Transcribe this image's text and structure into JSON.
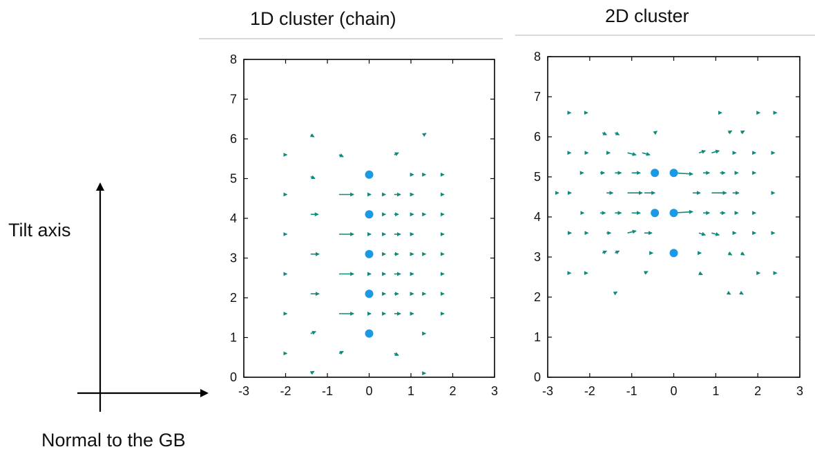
{
  "tilt_axis_label": "Tilt axis",
  "normal_label": "Normal to the GB",
  "colors": {
    "point": "#1a9ae6",
    "arrow": "#0f8a7a",
    "axis": "#000000"
  },
  "chart_data": [
    {
      "type": "scatter",
      "title": "1D cluster (chain)",
      "xlabel": "",
      "ylabel": "",
      "xlim": [
        -3,
        3
      ],
      "ylim": [
        0,
        8
      ],
      "xticks": [
        -3,
        -2,
        -1,
        0,
        1,
        2,
        3
      ],
      "yticks": [
        0,
        1,
        2,
        3,
        4,
        5,
        6,
        7,
        8
      ],
      "grid": false,
      "points": [
        [
          0,
          1.1
        ],
        [
          0,
          2.1
        ],
        [
          0,
          3.1
        ],
        [
          0,
          4.1
        ],
        [
          0,
          5.1
        ]
      ],
      "vectors": [
        [
          -2.05,
          5.6,
          0.08,
          0
        ],
        [
          -2.05,
          4.6,
          0.08,
          0
        ],
        [
          -2.05,
          3.6,
          0.08,
          0
        ],
        [
          -2.05,
          2.6,
          0.08,
          0
        ],
        [
          -2.05,
          1.6,
          0.08,
          0
        ],
        [
          -2.05,
          0.6,
          0.08,
          0
        ],
        [
          -1.4,
          6.1,
          0.08,
          -0.05
        ],
        [
          -1.4,
          5.05,
          0.1,
          -0.05
        ],
        [
          -1.4,
          4.1,
          0.18,
          0
        ],
        [
          -1.4,
          3.1,
          0.2,
          0
        ],
        [
          -1.4,
          2.1,
          0.2,
          0
        ],
        [
          -1.4,
          1.1,
          0.12,
          0.05
        ],
        [
          -1.4,
          0.1,
          0.08,
          0.05
        ],
        [
          -0.72,
          5.6,
          0.1,
          -0.05
        ],
        [
          -0.72,
          4.6,
          0.35,
          0
        ],
        [
          -0.72,
          3.6,
          0.35,
          0
        ],
        [
          -0.72,
          2.6,
          0.35,
          0
        ],
        [
          -0.72,
          1.6,
          0.35,
          0
        ],
        [
          -0.72,
          0.6,
          0.1,
          0.05
        ],
        [
          0,
          4.6,
          0.04,
          0
        ],
        [
          0,
          3.6,
          0.04,
          0
        ],
        [
          0,
          2.6,
          0.04,
          0
        ],
        [
          0,
          1.6,
          0.04,
          0
        ],
        [
          0.35,
          4.6,
          0.04,
          0
        ],
        [
          0.35,
          4.1,
          0.04,
          0
        ],
        [
          0.35,
          3.6,
          0.04,
          0
        ],
        [
          0.35,
          3.1,
          0.04,
          0
        ],
        [
          0.35,
          2.6,
          0.04,
          0
        ],
        [
          0.35,
          2.1,
          0.04,
          0
        ],
        [
          0.35,
          1.6,
          0.04,
          0
        ],
        [
          0.6,
          5.6,
          0.1,
          0.05
        ],
        [
          0.6,
          4.6,
          0.15,
          0
        ],
        [
          0.6,
          4.1,
          0.1,
          0
        ],
        [
          0.6,
          3.6,
          0.15,
          0
        ],
        [
          0.6,
          3.1,
          0.1,
          0
        ],
        [
          0.6,
          2.6,
          0.15,
          0
        ],
        [
          0.6,
          2.1,
          0.1,
          0
        ],
        [
          0.6,
          1.6,
          0.15,
          0
        ],
        [
          0.6,
          0.6,
          0.1,
          -0.05
        ],
        [
          1.0,
          5.1,
          0.06,
          0
        ],
        [
          1.0,
          4.6,
          0.06,
          0
        ],
        [
          1.0,
          4.1,
          0.06,
          0
        ],
        [
          1.0,
          3.6,
          0.06,
          0
        ],
        [
          1.0,
          3.1,
          0.06,
          0
        ],
        [
          1.0,
          2.6,
          0.06,
          0
        ],
        [
          1.0,
          2.1,
          0.06,
          0
        ],
        [
          1.0,
          1.6,
          0.06,
          0
        ],
        [
          1.3,
          6.1,
          0.06,
          0.04
        ],
        [
          1.3,
          5.1,
          0.05,
          0
        ],
        [
          1.3,
          4.1,
          0.05,
          0
        ],
        [
          1.3,
          3.1,
          0.05,
          0
        ],
        [
          1.3,
          2.1,
          0.05,
          0
        ],
        [
          1.3,
          1.1,
          0.05,
          0
        ],
        [
          1.3,
          0.1,
          0.05,
          0
        ],
        [
          1.75,
          5.1,
          0.04,
          0
        ],
        [
          1.75,
          4.6,
          0.04,
          0
        ],
        [
          1.75,
          4.1,
          0.04,
          0
        ],
        [
          1.75,
          3.6,
          0.04,
          0
        ],
        [
          1.75,
          3.1,
          0.04,
          0
        ],
        [
          1.75,
          2.6,
          0.04,
          0
        ],
        [
          1.75,
          2.1,
          0.04,
          0
        ],
        [
          1.75,
          1.6,
          0.04,
          0
        ]
      ]
    },
    {
      "type": "scatter",
      "title": "2D cluster",
      "xlabel": "",
      "ylabel": "",
      "xlim": [
        -3,
        3
      ],
      "ylim": [
        0,
        8
      ],
      "xticks": [
        -3,
        -2,
        -1,
        0,
        1,
        2,
        3
      ],
      "yticks": [
        0,
        1,
        2,
        3,
        4,
        5,
        6,
        7,
        8
      ],
      "grid": false,
      "points": [
        [
          -0.45,
          5.1
        ],
        [
          0,
          5.1
        ],
        [
          -0.45,
          4.1
        ],
        [
          0,
          4.1
        ],
        [
          0,
          3.1
        ]
      ],
      "vectors": [
        [
          -2.5,
          6.6,
          0.05,
          0
        ],
        [
          -2.1,
          6.6,
          0.05,
          0
        ],
        [
          -1.7,
          6.1,
          0.1,
          -0.05
        ],
        [
          -1.4,
          6.1,
          0.1,
          -0.05
        ],
        [
          -0.45,
          6.1,
          0.05,
          0.04
        ],
        [
          1.1,
          6.6,
          0.04,
          0
        ],
        [
          1.3,
          6.1,
          0.08,
          0.05
        ],
        [
          1.6,
          6.1,
          0.08,
          0.05
        ],
        [
          2.0,
          6.6,
          0.05,
          0
        ],
        [
          2.4,
          6.6,
          0.05,
          0
        ],
        [
          -2.5,
          5.6,
          0.05,
          0
        ],
        [
          -2.1,
          5.6,
          0.06,
          0
        ],
        [
          -1.6,
          5.6,
          0.08,
          0
        ],
        [
          -1.1,
          5.6,
          0.2,
          -0.05
        ],
        [
          -0.75,
          5.6,
          0.18,
          -0.05
        ],
        [
          0.6,
          5.6,
          0.15,
          0.05
        ],
        [
          0.9,
          5.6,
          0.18,
          0.05
        ],
        [
          1.4,
          5.6,
          0.08,
          0
        ],
        [
          1.9,
          5.6,
          0.05,
          0
        ],
        [
          2.35,
          5.6,
          0.05,
          0
        ],
        [
          -2.2,
          5.1,
          0.05,
          0
        ],
        [
          -1.75,
          5.1,
          0.1,
          0
        ],
        [
          -1.4,
          5.1,
          0.15,
          0
        ],
        [
          -1.0,
          5.1,
          0.2,
          0
        ],
        [
          0.0,
          5.1,
          0.45,
          -0.03
        ],
        [
          0.7,
          5.1,
          0.15,
          0
        ],
        [
          1.1,
          5.1,
          0.12,
          0
        ],
        [
          1.45,
          5.1,
          0.08,
          0
        ],
        [
          1.9,
          5.1,
          0.05,
          0
        ],
        [
          -2.8,
          4.6,
          0.06,
          0
        ],
        [
          -2.5,
          4.6,
          0.06,
          0
        ],
        [
          -1.6,
          4.6,
          0.15,
          0
        ],
        [
          -1.1,
          4.6,
          0.35,
          0
        ],
        [
          -0.7,
          4.6,
          0.25,
          0
        ],
        [
          0.45,
          4.6,
          0.18,
          0
        ],
        [
          0.9,
          4.6,
          0.35,
          0
        ],
        [
          1.4,
          4.6,
          0.15,
          0
        ],
        [
          2.35,
          4.6,
          0.05,
          0
        ],
        [
          -2.2,
          4.1,
          0.06,
          0
        ],
        [
          -1.75,
          4.1,
          0.12,
          0
        ],
        [
          -1.4,
          4.1,
          0.15,
          0
        ],
        [
          -1.0,
          4.1,
          0.2,
          0
        ],
        [
          0.0,
          4.1,
          0.45,
          0.03
        ],
        [
          0.7,
          4.1,
          0.15,
          0
        ],
        [
          1.1,
          4.1,
          0.12,
          0
        ],
        [
          1.45,
          4.1,
          0.08,
          0
        ],
        [
          1.9,
          4.1,
          0.05,
          0
        ],
        [
          -2.5,
          3.6,
          0.06,
          0
        ],
        [
          -2.1,
          3.6,
          0.06,
          0
        ],
        [
          -1.6,
          3.6,
          0.1,
          0
        ],
        [
          -1.1,
          3.6,
          0.2,
          0.05
        ],
        [
          -0.7,
          3.6,
          0.18,
          0
        ],
        [
          0.6,
          3.6,
          0.15,
          -0.05
        ],
        [
          0.9,
          3.6,
          0.18,
          -0.05
        ],
        [
          1.4,
          3.6,
          0.08,
          0
        ],
        [
          1.9,
          3.6,
          0.05,
          0
        ],
        [
          2.35,
          3.6,
          0.05,
          0
        ],
        [
          -1.7,
          3.1,
          0.1,
          0.05
        ],
        [
          -1.4,
          3.1,
          0.1,
          0.05
        ],
        [
          -0.55,
          3.1,
          0.05,
          0
        ],
        [
          0.6,
          3.1,
          0.05,
          0
        ],
        [
          1.3,
          3.1,
          0.08,
          -0.05
        ],
        [
          1.6,
          3.1,
          0.08,
          -0.05
        ],
        [
          -2.5,
          2.6,
          0.05,
          0
        ],
        [
          -2.1,
          2.6,
          0.05,
          0
        ],
        [
          -0.7,
          2.6,
          0.08,
          0.04
        ],
        [
          0.6,
          2.6,
          0.08,
          -0.04
        ],
        [
          2.0,
          2.6,
          0.05,
          0
        ],
        [
          2.4,
          2.6,
          0.05,
          0
        ],
        [
          -1.4,
          2.1,
          0.05,
          0.03
        ],
        [
          1.3,
          2.1,
          0.05,
          -0.03
        ],
        [
          1.6,
          2.1,
          0.05,
          -0.03
        ]
      ]
    }
  ]
}
